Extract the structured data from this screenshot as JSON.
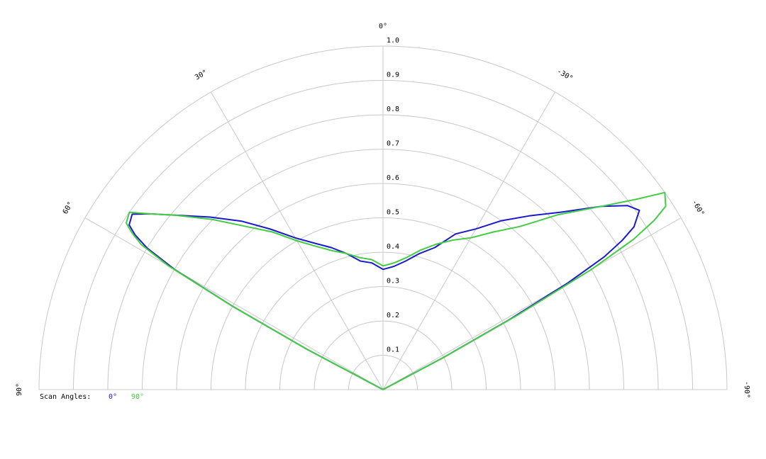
{
  "chart_data": {
    "type": "polar",
    "x": [
      -63,
      -62,
      -61,
      -60,
      -59,
      -58,
      -57,
      -55,
      -53,
      -50,
      -45,
      -40,
      -35,
      -30,
      -25,
      -20,
      -15,
      -10,
      -5,
      0,
      5,
      10,
      15,
      20,
      25,
      30,
      35,
      40,
      45,
      50,
      53,
      55,
      57,
      58,
      59,
      60,
      61,
      62,
      63
    ],
    "series": [
      {
        "name": "0°",
        "color": "#1a1acc",
        "values": [
          0,
          0.2,
          0.42,
          0.62,
          0.75,
          0.82,
          0.87,
          0.91,
          0.89,
          0.83,
          0.73,
          0.66,
          0.6,
          0.54,
          0.5,
          0.44,
          0.41,
          0.38,
          0.36,
          0.35,
          0.37,
          0.38,
          0.41,
          0.44,
          0.47,
          0.51,
          0.57,
          0.64,
          0.71,
          0.79,
          0.85,
          0.89,
          0.88,
          0.85,
          0.8,
          0.7,
          0.5,
          0.25,
          0
        ]
      },
      {
        "name": "90°",
        "color": "#44cc44",
        "values": [
          0,
          0.2,
          0.45,
          0.7,
          0.85,
          0.93,
          0.98,
          1.0,
          0.92,
          0.83,
          0.72,
          0.62,
          0.56,
          0.51,
          0.48,
          0.45,
          0.42,
          0.39,
          0.37,
          0.36,
          0.38,
          0.39,
          0.41,
          0.43,
          0.46,
          0.5,
          0.56,
          0.62,
          0.7,
          0.79,
          0.85,
          0.9,
          0.89,
          0.86,
          0.82,
          0.72,
          0.5,
          0.25,
          0
        ]
      }
    ],
    "legend_title": "Scan Angles:",
    "rlim": [
      0,
      1
    ],
    "rticks": [
      0.1,
      0.2,
      0.3,
      0.4,
      0.5,
      0.6,
      0.7,
      0.8,
      0.9,
      {
        "value": 1,
        "label": "1.0"
      }
    ],
    "thetalim": [
      -90,
      90
    ],
    "thetaticks": [
      {
        "value": 90,
        "label": "90°"
      },
      {
        "value": 60,
        "label": "60°"
      },
      {
        "value": 30,
        "label": "30°"
      },
      {
        "value": 0,
        "label": "0°"
      },
      {
        "value": -30,
        "label": "-30°"
      },
      {
        "value": -60,
        "label": "-60°"
      },
      {
        "value": -90,
        "label": "-90°"
      }
    ],
    "grid": true
  }
}
